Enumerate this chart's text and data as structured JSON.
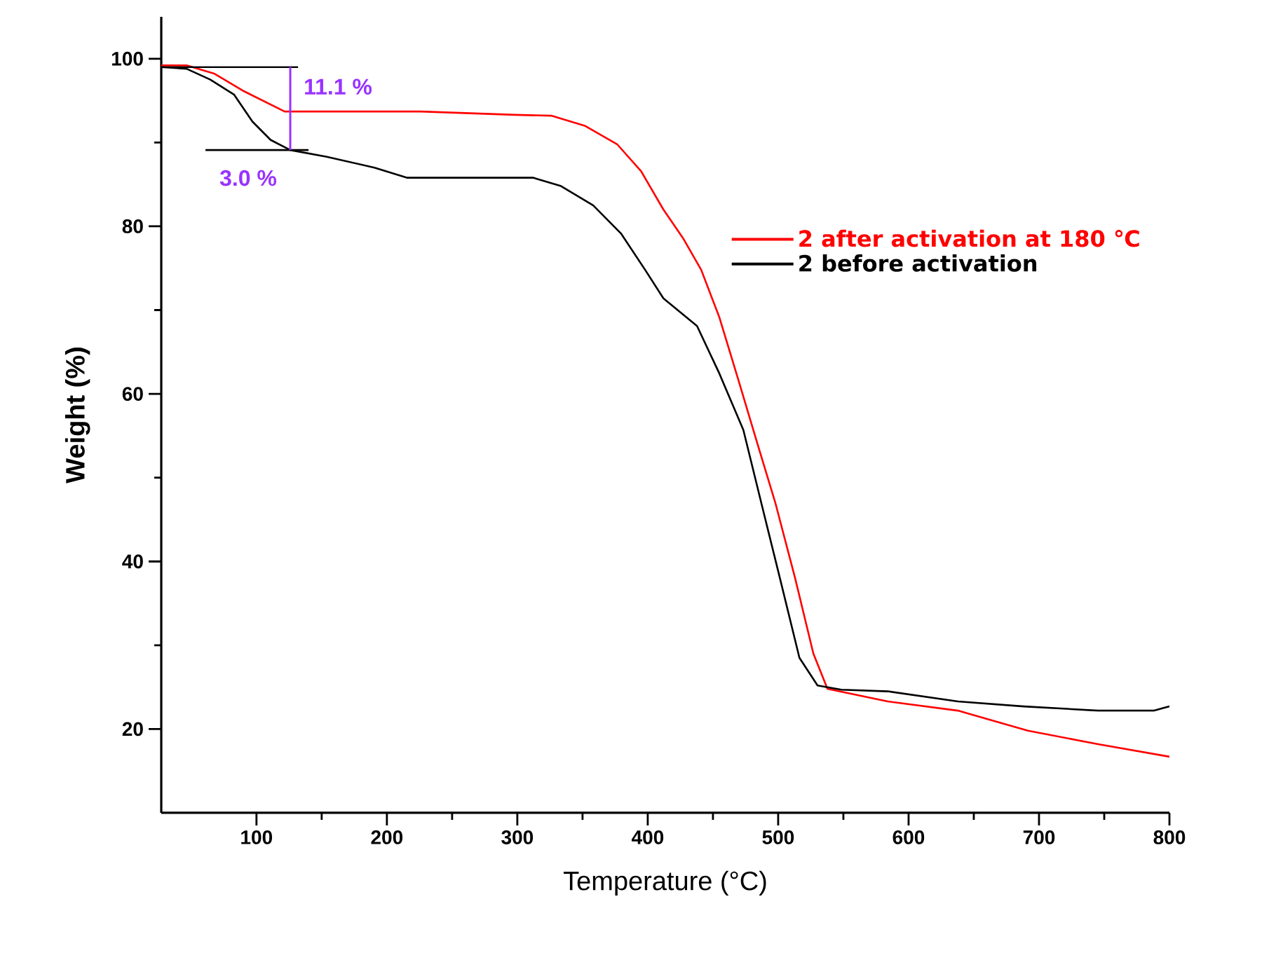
{
  "chart_data": {
    "type": "line",
    "xlabel": "Temperature (°C)",
    "ylabel": "Weight (%)",
    "xlim": [
      27,
      800
    ],
    "ylim": [
      10,
      105
    ],
    "xticks": [
      100,
      200,
      300,
      400,
      500,
      600,
      700,
      800
    ],
    "yticks": [
      20,
      40,
      60,
      80,
      100
    ],
    "grid": false,
    "legend": "right",
    "line_style": "solid",
    "marker": "none",
    "series": [
      {
        "name": "2 after activation at 180 ℃",
        "color": "#ff0000",
        "x": [
          27,
          46.4,
          67.9,
          89.4,
          121.6,
          225.9,
          298,
          326,
          351.7,
          376.5,
          394.8,
          412,
          427,
          441,
          455,
          470,
          484,
          498,
          513,
          527,
          537.8,
          584,
          637.8,
          691.5,
          745.3,
          800
        ],
        "values": [
          99.2,
          99.2,
          98.2,
          96.2,
          93.7,
          93.7,
          93.3,
          93.2,
          92.0,
          89.8,
          86.6,
          82.0,
          78.6,
          74.8,
          69.1,
          61.4,
          54.1,
          46.9,
          38.0,
          29.0,
          24.8,
          23.3,
          22.2,
          19.8,
          18.2,
          16.7
        ]
      },
      {
        "name": "2 before activation",
        "color": "#000000",
        "x": [
          27,
          46.4,
          64.6,
          82.9,
          96.9,
          110.9,
          125.9,
          153.9,
          190.4,
          215.2,
          312,
          333.5,
          358.2,
          379.7,
          398,
          412,
          437.8,
          455,
          473.3,
          487.2,
          502.3,
          516.3,
          530.2,
          548.5,
          584,
          637.8,
          688.3,
          745.3,
          788.3,
          800
        ],
        "values": [
          99.0,
          98.8,
          97.5,
          95.7,
          92.5,
          90.3,
          89.1,
          88.3,
          87.0,
          85.8,
          85.8,
          84.8,
          82.5,
          79.1,
          74.8,
          71.4,
          68.1,
          62.4,
          55.7,
          46.9,
          37.4,
          28.5,
          25.2,
          24.7,
          24.5,
          23.3,
          22.7,
          22.2,
          22.2,
          22.7
        ]
      }
    ],
    "annotations": [
      {
        "text": "11.1 %",
        "x": 27,
        "y": 99.0
      },
      {
        "text": "3.0 %",
        "x": 125.9,
        "y": 89.1
      }
    ]
  }
}
